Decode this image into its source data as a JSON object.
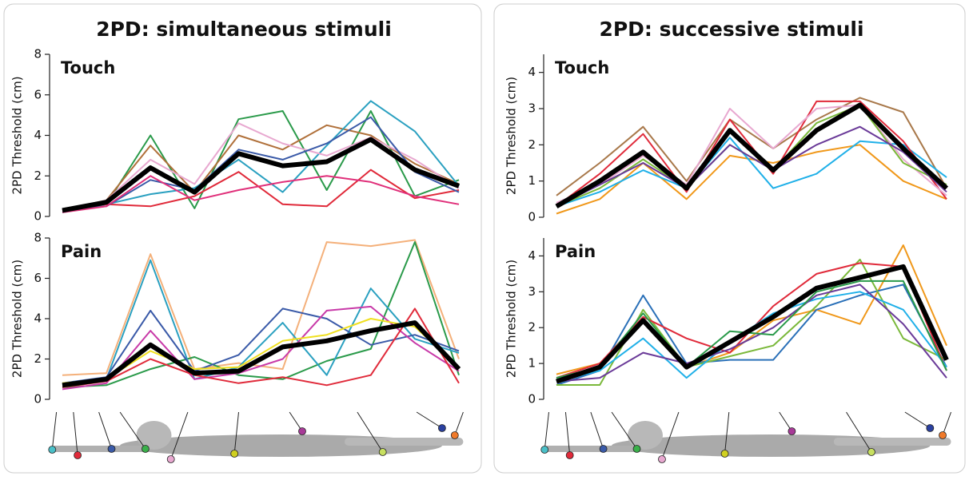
{
  "headers": [
    "2PD: simultaneous stimuli",
    "2PD: successive stimuli"
  ],
  "chart_data": [
    {
      "type": "line",
      "title": "Touch",
      "ylabel": "2PD Threshold (cm)",
      "categories": [
        null,
        null,
        null,
        null,
        null,
        null,
        null,
        null,
        null,
        null
      ],
      "ylim": [
        0,
        8
      ],
      "yticks": [
        0,
        2,
        4,
        6,
        8
      ],
      "series": [
        {
          "color": "#2a9a4a",
          "values": [
            0.3,
            0.6,
            4.0,
            0.4,
            4.8,
            5.2,
            1.3,
            5.2,
            1.0,
            1.8
          ]
        },
        {
          "color": "#b0703a",
          "values": [
            0.3,
            0.8,
            3.5,
            1.2,
            4.0,
            3.3,
            4.5,
            4.0,
            2.6,
            1.6
          ]
        },
        {
          "color": "#2aa0c0",
          "values": [
            0.2,
            0.6,
            1.1,
            1.4,
            2.8,
            1.2,
            3.5,
            5.7,
            4.2,
            1.5
          ]
        },
        {
          "color": "#e8a8d0",
          "values": [
            0.3,
            0.8,
            2.8,
            1.6,
            4.6,
            3.6,
            3.0,
            3.9,
            2.8,
            1.4
          ]
        },
        {
          "color": "#e02a3a",
          "values": [
            0.3,
            0.6,
            0.5,
            1.0,
            2.2,
            0.6,
            0.5,
            2.3,
            0.9,
            1.3
          ]
        },
        {
          "color": "#3a5aa8",
          "values": [
            0.3,
            0.5,
            1.8,
            1.3,
            3.3,
            2.8,
            3.6,
            4.9,
            2.2,
            1.2
          ]
        },
        {
          "color": "#e0307a",
          "values": [
            0.2,
            0.5,
            2.0,
            0.8,
            1.3,
            1.7,
            2.0,
            1.7,
            1.0,
            0.6
          ]
        },
        {
          "color": "#000000",
          "values": [
            0.3,
            0.7,
            2.4,
            1.2,
            3.1,
            2.5,
            2.7,
            3.8,
            2.3,
            1.5
          ]
        }
      ]
    },
    {
      "type": "line",
      "title": "Pain",
      "ylabel": "2PD Threshold (cm)",
      "categories": [
        null,
        null,
        null,
        null,
        null,
        null,
        null,
        null,
        null,
        null
      ],
      "ylim": [
        0,
        8
      ],
      "yticks": [
        0,
        2,
        4,
        6,
        8
      ],
      "series": [
        {
          "color": "#f4b07a",
          "values": [
            1.2,
            1.3,
            7.2,
            1.5,
            1.8,
            1.5,
            7.8,
            7.6,
            7.9,
            2.0
          ]
        },
        {
          "color": "#2a9a4a",
          "values": [
            0.6,
            0.7,
            1.5,
            2.1,
            1.2,
            1.0,
            1.9,
            2.5,
            7.8,
            1.2
          ]
        },
        {
          "color": "#2aa0c0",
          "values": [
            0.6,
            1.0,
            6.9,
            1.0,
            1.6,
            3.8,
            1.2,
            5.5,
            3.0,
            2.3
          ]
        },
        {
          "color": "#3a5aa8",
          "values": [
            0.8,
            1.1,
            4.4,
            1.4,
            2.2,
            4.5,
            4.0,
            2.7,
            3.2,
            2.4
          ]
        },
        {
          "color": "#c83aa8",
          "values": [
            0.5,
            0.8,
            3.4,
            1.0,
            1.3,
            2.0,
            4.4,
            4.6,
            2.8,
            1.4
          ]
        },
        {
          "color": "#e02a3a",
          "values": [
            0.6,
            0.9,
            2.0,
            1.2,
            0.8,
            1.1,
            0.7,
            1.2,
            4.5,
            0.8
          ]
        },
        {
          "color": "#f0e020",
          "values": [
            0.8,
            1.0,
            2.4,
            1.5,
            1.6,
            2.9,
            3.2,
            4.0,
            3.6,
            1.6
          ]
        },
        {
          "color": "#000000",
          "values": [
            0.7,
            1.0,
            2.7,
            1.3,
            1.4,
            2.6,
            2.9,
            3.4,
            3.8,
            1.5
          ]
        }
      ]
    },
    {
      "type": "line",
      "title": "Touch",
      "ylabel": "2PD Threshold (cm)",
      "categories": [
        null,
        null,
        null,
        null,
        null,
        null,
        null,
        null,
        null,
        null
      ],
      "ylim": [
        0,
        4.5
      ],
      "yticks": [
        0,
        1,
        2,
        3,
        4
      ],
      "series": [
        {
          "color": "#a8784a",
          "values": [
            0.6,
            1.5,
            2.5,
            1.0,
            2.7,
            1.9,
            2.7,
            3.3,
            2.9,
            0.8
          ]
        },
        {
          "color": "#f0981a",
          "values": [
            0.1,
            0.5,
            1.5,
            0.5,
            1.7,
            1.5,
            1.8,
            2.0,
            1.0,
            0.5
          ]
        },
        {
          "color": "#20b0e8",
          "values": [
            0.3,
            0.7,
            1.3,
            0.8,
            2.2,
            0.8,
            1.2,
            2.1,
            2.0,
            1.1
          ]
        },
        {
          "color": "#e02a3a",
          "values": [
            0.3,
            1.2,
            2.3,
            0.7,
            2.7,
            1.2,
            3.2,
            3.2,
            2.1,
            0.5
          ]
        },
        {
          "color": "#e8a8d0",
          "values": [
            0.4,
            0.9,
            1.7,
            0.9,
            3.0,
            1.9,
            3.0,
            3.1,
            1.6,
            0.6
          ]
        },
        {
          "color": "#7ab83a",
          "values": [
            0.3,
            0.8,
            1.6,
            0.8,
            2.0,
            1.3,
            2.6,
            3.1,
            1.5,
            0.9
          ]
        },
        {
          "color": "#6a3a98",
          "values": [
            0.3,
            0.9,
            1.5,
            0.8,
            2.0,
            1.3,
            2.0,
            2.5,
            1.8,
            0.7
          ]
        },
        {
          "color": "#000000",
          "values": [
            0.3,
            1.0,
            1.8,
            0.8,
            2.4,
            1.3,
            2.4,
            3.1,
            1.9,
            0.8
          ]
        }
      ]
    },
    {
      "type": "line",
      "title": "Pain",
      "ylabel": "2PD Threshold (cm)",
      "categories": [
        null,
        null,
        null,
        null,
        null,
        null,
        null,
        null,
        null,
        null
      ],
      "ylim": [
        0,
        4.5
      ],
      "yticks": [
        0,
        1,
        2,
        3,
        4
      ],
      "series": [
        {
          "color": "#f0981a",
          "values": [
            0.7,
            1.0,
            2.2,
            0.9,
            1.3,
            2.2,
            2.5,
            2.1,
            4.3,
            1.5
          ]
        },
        {
          "color": "#2a70b8",
          "values": [
            0.4,
            0.8,
            2.9,
            1.0,
            1.1,
            1.1,
            2.5,
            2.9,
            3.2,
            0.9
          ]
        },
        {
          "color": "#7ab83a",
          "values": [
            0.4,
            0.4,
            2.5,
            0.9,
            1.2,
            1.5,
            2.6,
            3.9,
            1.7,
            1.1
          ]
        },
        {
          "color": "#e02a3a",
          "values": [
            0.6,
            1.0,
            2.3,
            1.7,
            1.3,
            2.6,
            3.5,
            3.8,
            3.7,
            0.8
          ]
        },
        {
          "color": "#20b0e8",
          "values": [
            0.5,
            0.8,
            1.7,
            0.6,
            1.6,
            2.4,
            2.8,
            3.0,
            2.5,
            0.9
          ]
        },
        {
          "color": "#6a3a98",
          "values": [
            0.5,
            0.6,
            1.3,
            1.0,
            1.4,
            2.0,
            2.9,
            3.2,
            2.1,
            0.6
          ]
        },
        {
          "color": "#2a9a4a",
          "values": [
            0.6,
            0.9,
            2.4,
            0.9,
            1.9,
            1.8,
            3.0,
            3.3,
            3.3,
            0.8
          ]
        },
        {
          "color": "#000000",
          "values": [
            0.5,
            0.9,
            2.2,
            0.9,
            1.6,
            2.3,
            3.1,
            3.4,
            3.7,
            1.1
          ]
        }
      ]
    }
  ]
}
